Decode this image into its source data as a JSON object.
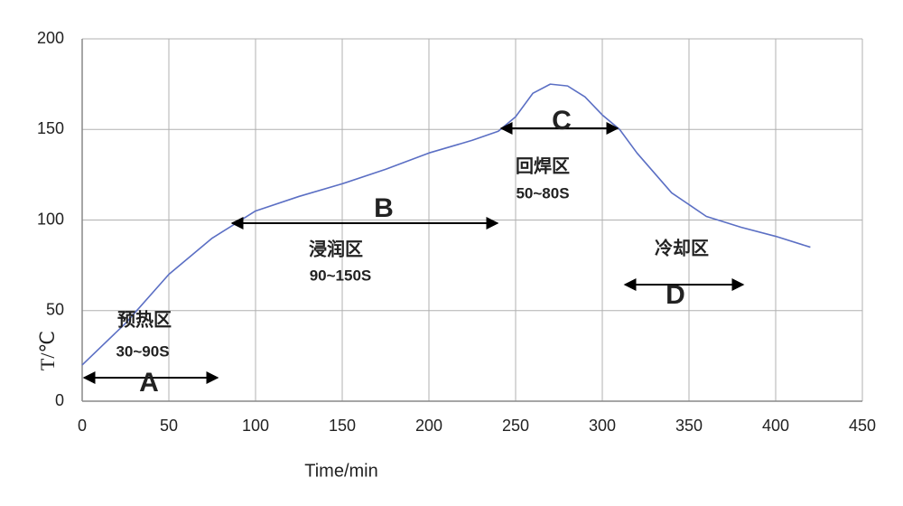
{
  "chart_data": {
    "type": "line",
    "xlabel": "Time/min",
    "ylabel": "T/℃",
    "x": [
      0,
      25,
      50,
      75,
      100,
      125,
      150,
      175,
      200,
      225,
      240,
      250,
      260,
      270,
      280,
      290,
      300,
      310,
      320,
      340,
      360,
      380,
      400,
      420
    ],
    "series": [
      {
        "color": "#5b6fc4",
        "values": [
          20,
          43,
          70,
          90,
          105,
          113,
          120,
          128,
          137,
          144,
          149,
          157,
          170,
          175,
          174,
          168,
          158,
          150,
          137,
          115,
          102,
          96,
          91,
          85
        ]
      }
    ],
    "xlim": [
      0,
      450
    ],
    "ylim": [
      0,
      200
    ],
    "xticks": [
      0,
      50,
      100,
      150,
      200,
      250,
      300,
      350,
      400,
      450
    ],
    "yticks": [
      0,
      50,
      100,
      150,
      200
    ],
    "grid": true,
    "annotations": [
      {
        "letter": "A",
        "zone": "预热区",
        "duration": "30~90S"
      },
      {
        "letter": "B",
        "zone": "浸润区",
        "duration": "90~150S"
      },
      {
        "letter": "C",
        "zone": "回焊区",
        "duration": "50~80S"
      },
      {
        "letter": "D",
        "zone": "冷却区"
      }
    ]
  }
}
